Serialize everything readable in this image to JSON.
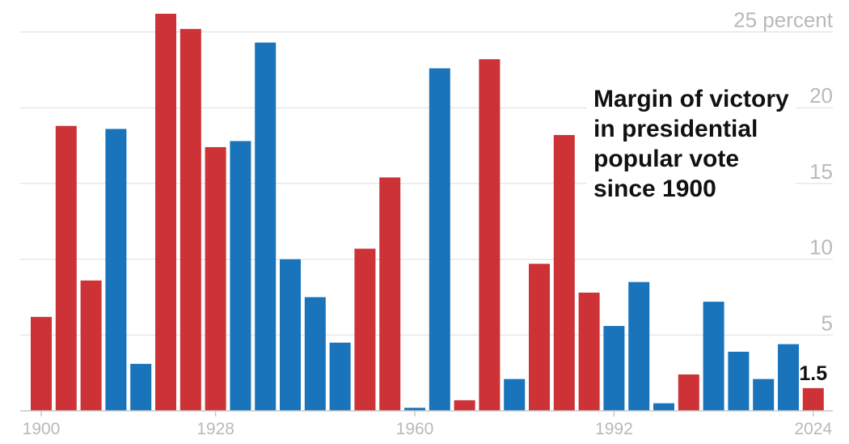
{
  "chart_data": {
    "type": "bar",
    "title_lines": [
      "Margin of victory",
      "in presidential",
      "popular vote",
      "since 1900"
    ],
    "y_unit": "percent",
    "ylim": [
      0,
      25
    ],
    "y_ticks": [
      5,
      10,
      15,
      20,
      25
    ],
    "y_tick_labels": [
      "5",
      "10",
      "15",
      "20",
      "25 percent"
    ],
    "x_tick_labels": [
      "1900",
      "1928",
      "1960",
      "1992",
      "2024"
    ],
    "grid": true,
    "colors": {
      "republican": "#cc3236",
      "democrat": "#1a74bb"
    },
    "categories": [
      1900,
      1904,
      1908,
      1912,
      1916,
      1920,
      1924,
      1928,
      1932,
      1936,
      1940,
      1944,
      1948,
      1952,
      1956,
      1960,
      1964,
      1968,
      1972,
      1976,
      1980,
      1984,
      1988,
      1992,
      1996,
      2000,
      2004,
      2008,
      2012,
      2016,
      2020,
      2024
    ],
    "values": [
      6.2,
      18.8,
      8.6,
      18.6,
      3.1,
      26.2,
      25.2,
      17.4,
      17.8,
      24.3,
      10.0,
      7.5,
      4.5,
      10.7,
      15.4,
      0.2,
      22.6,
      0.7,
      23.2,
      2.1,
      9.7,
      18.2,
      7.8,
      5.6,
      8.5,
      0.5,
      2.4,
      7.2,
      3.9,
      2.1,
      4.4,
      1.5
    ],
    "parties": [
      "R",
      "R",
      "R",
      "D",
      "D",
      "R",
      "R",
      "R",
      "D",
      "D",
      "D",
      "D",
      "D",
      "R",
      "R",
      "D",
      "D",
      "R",
      "R",
      "D",
      "R",
      "R",
      "R",
      "D",
      "D",
      "D",
      "R",
      "D",
      "D",
      "D",
      "D",
      "R"
    ],
    "annotations": [
      {
        "category": 2024,
        "text": "1.5"
      }
    ]
  }
}
